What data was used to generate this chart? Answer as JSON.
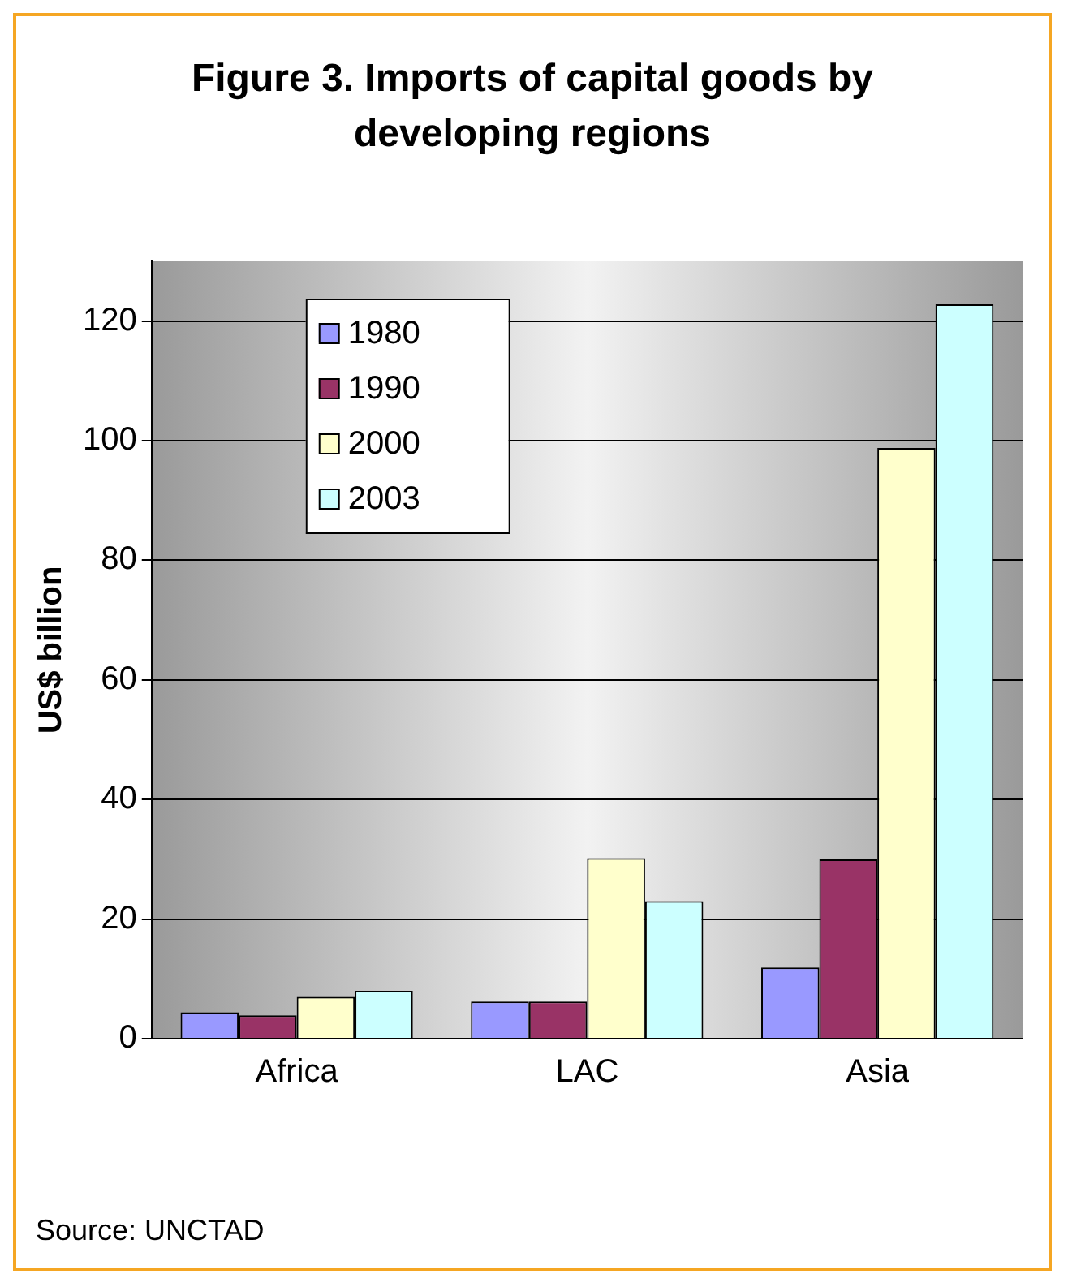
{
  "chart_data": {
    "type": "bar",
    "title": "Figure 3. Imports of capital goods by developing regions",
    "ylabel": "US$ billion",
    "categories": [
      "Africa",
      "LAC",
      "Asia"
    ],
    "series": [
      {
        "name": "1980",
        "color": "#9999ff",
        "values": [
          4.4,
          6.2,
          11.9
        ]
      },
      {
        "name": "1990",
        "color": "#993366",
        "values": [
          3.9,
          6.2,
          30
        ]
      },
      {
        "name": "2000",
        "color": "#ffffcc",
        "values": [
          7,
          30.2,
          98.8
        ]
      },
      {
        "name": "2003",
        "color": "#ccffff",
        "values": [
          8,
          23,
          122.8
        ]
      }
    ],
    "ylim": [
      0,
      130
    ],
    "yticks": [
      0,
      20,
      40,
      60,
      80,
      100,
      120
    ],
    "grid": "y",
    "legend": "top left",
    "annotations": [
      "Source: UNCTAD"
    ]
  }
}
